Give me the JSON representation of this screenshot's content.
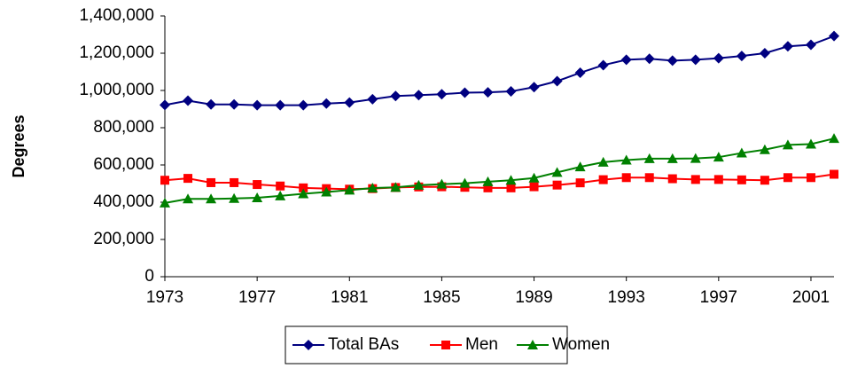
{
  "chart_data": {
    "type": "line",
    "y_label": "Degrees",
    "x": [
      1973,
      1974,
      1975,
      1976,
      1977,
      1978,
      1979,
      1980,
      1981,
      1982,
      1983,
      1984,
      1985,
      1986,
      1987,
      1988,
      1989,
      1990,
      1991,
      1992,
      1993,
      1994,
      1995,
      1996,
      1997,
      1998,
      1999,
      2000,
      2001,
      2002
    ],
    "series": [
      {
        "name": "Total BAs",
        "color": "#000080",
        "marker": "diamond",
        "values": [
          922000,
          945000,
          925000,
          925000,
          921000,
          921000,
          921000,
          930000,
          935000,
          953000,
          970000,
          975000,
          980000,
          988000,
          990000,
          995000,
          1018000,
          1050000,
          1095000,
          1136000,
          1165000,
          1170000,
          1160000,
          1165000,
          1173000,
          1185000,
          1200000,
          1237000,
          1245000,
          1292000
        ]
      },
      {
        "name": "Men",
        "color": "#ff0000",
        "marker": "square",
        "values": [
          518000,
          528000,
          505000,
          505000,
          495000,
          487000,
          477000,
          473000,
          470000,
          473000,
          479000,
          482000,
          483000,
          480000,
          477000,
          477000,
          483000,
          492000,
          504000,
          521000,
          532000,
          532000,
          526000,
          522000,
          522000,
          520000,
          518000,
          532000,
          532000,
          550000
        ]
      },
      {
        "name": "Women",
        "color": "#008000",
        "marker": "triangle",
        "values": [
          396000,
          418000,
          418000,
          420000,
          424000,
          434000,
          445000,
          455000,
          465000,
          476000,
          480000,
          491000,
          497000,
          502000,
          510000,
          518000,
          530000,
          560000,
          590000,
          615000,
          626000,
          634000,
          634000,
          635000,
          642000,
          664000,
          682000,
          708000,
          712000,
          742000
        ]
      }
    ],
    "xlim": [
      1973,
      2002
    ],
    "xticks": [
      1973,
      1977,
      1981,
      1985,
      1989,
      1993,
      1997,
      2001
    ],
    "ylim": [
      0,
      1400000
    ],
    "yticks": [
      0,
      {
        "value": 200000,
        "label": "200,000"
      },
      {
        "value": 400000,
        "label": "400,000"
      },
      {
        "value": 600000,
        "label": "600,000"
      },
      {
        "value": 800000,
        "label": "800,000"
      },
      {
        "value": 1000000,
        "label": "1,000,000"
      },
      {
        "value": 1200000,
        "label": "1,200,000"
      },
      {
        "value": 1400000,
        "label": "1,400,000"
      }
    ],
    "grid": false,
    "legend": "bottom"
  }
}
